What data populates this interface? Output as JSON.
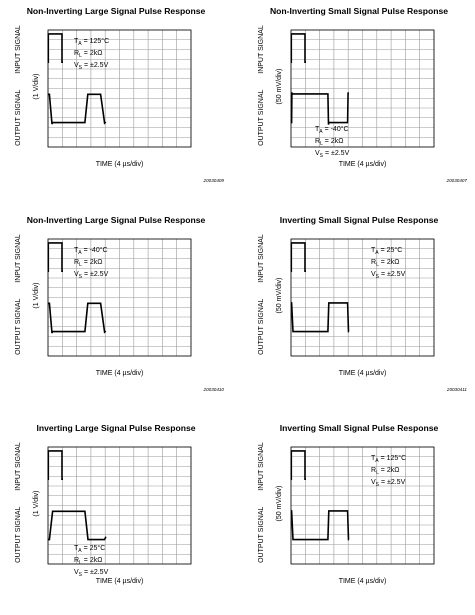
{
  "chart_data": [
    {
      "type": "line",
      "title": "Non-Inverting Large Signal Pulse Response",
      "xlabel": "TIME (4 µs/div)",
      "ylabel_top": "INPUT SIGNAL",
      "ylabel_bottom": "OUTPUT SIGNAL",
      "yscale": "(1 V/div)",
      "code": "20030409",
      "annotation": {
        "ta": "T",
        "ta_sub": "A",
        "ta_val": " = 125°C",
        "rl": "R",
        "rl_sub": "L",
        "rl_val": " = 2kΩ",
        "vs": "V",
        "vs_sub": "S",
        "vs_val": " = ±2.5V"
      },
      "annotation_pos": "top-left",
      "grid": true,
      "series": [
        {
          "name": "INPUT SIGNAL",
          "x": [
            0,
            0.02,
            0.02,
            0.98,
            0.98,
            1.05
          ],
          "y": [
            4.7,
            4.7,
            7.6,
            7.6,
            4.7,
            4.7
          ]
        },
        {
          "name": "OUTPUT SIGNAL",
          "x": [
            0,
            0.1,
            0.28,
            0.32,
            0.5,
            2.58,
            2.78,
            3.08,
            3.68,
            3.96,
            4.04
          ],
          "y": [
            1.4,
            1.4,
            -1.65,
            -1.5,
            -1.5,
            -1.5,
            1.4,
            1.4,
            1.4,
            -1.55,
            -1.45
          ]
        }
      ]
    },
    {
      "type": "line",
      "title": "Non-Inverting Small Signal Pulse Response",
      "xlabel": "TIME (4 µs/div)",
      "ylabel_top": "INPUT SIGNAL",
      "ylabel_bottom": "OUTPUT SIGNAL",
      "yscale": "(50 mV/div)",
      "code": "20030407",
      "annotation": {
        "ta": "T",
        "ta_sub": "A",
        "ta_val": " = -40°C",
        "rl": "R",
        "rl_sub": "L",
        "rl_val": " = 2kΩ",
        "vs": "V",
        "vs_sub": "S",
        "vs_val": " = ±2.5V"
      },
      "annotation_pos": "center",
      "grid": true,
      "series": [
        {
          "name": "INPUT SIGNAL",
          "x": [
            0,
            0.02,
            0.02,
            0.98,
            0.98,
            1.05
          ],
          "y": [
            4.7,
            4.7,
            7.6,
            7.6,
            4.7,
            4.7
          ]
        },
        {
          "name": "OUTPUT SIGNAL",
          "x": [
            0,
            0.04,
            0.06,
            0.08,
            0.12,
            2.58,
            2.62,
            2.64,
            2.7,
            3.96,
            3.99,
            4.01,
            4.05
          ],
          "y": [
            -1.5,
            -1.5,
            1.6,
            1.45,
            1.45,
            1.45,
            -1.7,
            -1.5,
            -1.5,
            -1.5,
            1.6,
            1.45,
            1.45
          ]
        }
      ]
    },
    {
      "type": "line",
      "title": "Non-Inverting Large Signal Pulse Response",
      "xlabel": "TIME (4 µs/div)",
      "ylabel_top": "INPUT SIGNAL",
      "ylabel_bottom": "OUTPUT SIGNAL",
      "yscale": "(1 V/div)",
      "code": "20030410",
      "annotation": {
        "ta": "T",
        "ta_sub": "A",
        "ta_val": " = -40°C",
        "rl": "R",
        "rl_sub": "L",
        "rl_val": " = 2kΩ",
        "vs": "V",
        "vs_sub": "S",
        "vs_val": " = ±2.5V"
      },
      "annotation_pos": "top-left",
      "grid": true,
      "series": [
        {
          "name": "INPUT SIGNAL",
          "x": [
            0,
            0.02,
            0.02,
            0.98,
            0.98,
            1.05
          ],
          "y": [
            4.7,
            4.7,
            7.6,
            7.6,
            4.7,
            4.7
          ]
        },
        {
          "name": "OUTPUT SIGNAL",
          "x": [
            0,
            0.1,
            0.28,
            0.32,
            0.5,
            2.58,
            2.78,
            3.08,
            3.68,
            3.96,
            4.04
          ],
          "y": [
            1.4,
            1.4,
            -1.65,
            -1.5,
            -1.5,
            -1.5,
            1.4,
            1.4,
            1.4,
            -1.55,
            -1.45
          ]
        }
      ]
    },
    {
      "type": "line",
      "title": "Inverting Small Signal Pulse Response",
      "xlabel": "TIME (4 µs/div)",
      "ylabel_top": "INPUT SIGNAL",
      "ylabel_bottom": "OUTPUT SIGNAL",
      "yscale": "(50 mV/div)",
      "code": "20030411",
      "annotation": {
        "ta": "T",
        "ta_sub": "A",
        "ta_val": " = 25°C",
        "rl": "R",
        "rl_sub": "L",
        "rl_val": " = 2kΩ",
        "vs": "V",
        "vs_sub": "S",
        "vs_val": " = ±2.5V"
      },
      "annotation_pos": "top-right",
      "grid": true,
      "series": [
        {
          "name": "INPUT SIGNAL",
          "x": [
            0,
            0.02,
            0.02,
            0.98,
            0.98,
            1.05
          ],
          "y": [
            4.7,
            4.7,
            7.6,
            7.6,
            4.7,
            4.7
          ]
        },
        {
          "name": "OUTPUT SIGNAL",
          "x": [
            0,
            0.04,
            0.14,
            2.58,
            2.64,
            3.96,
            4.02,
            4.05
          ],
          "y": [
            1.45,
            1.45,
            -1.5,
            -1.5,
            1.45,
            1.45,
            -1.5,
            -1.5
          ]
        }
      ]
    },
    {
      "type": "line",
      "title": "Inverting Large Signal Pulse Response",
      "xlabel": "TIME (4 µs/div)",
      "ylabel_top": "INPUT SIGNAL",
      "ylabel_bottom": "OUTPUT SIGNAL",
      "yscale": "(1 V/div)",
      "code": "",
      "annotation": {
        "ta": "T",
        "ta_sub": "A",
        "ta_val": " = 25°C",
        "rl": "R",
        "rl_sub": "L",
        "rl_val": " = 2kΩ",
        "vs": "V",
        "vs_sub": "S",
        "vs_val": " = ±2.5V"
      },
      "annotation_pos": "bottom-left",
      "grid": true,
      "series": [
        {
          "name": "INPUT SIGNAL",
          "x": [
            0,
            0.02,
            0.02,
            0.98,
            0.98,
            1.05
          ],
          "y": [
            4.7,
            4.7,
            7.6,
            7.6,
            4.7,
            4.7
          ]
        },
        {
          "name": "OUTPUT SIGNAL",
          "x": [
            0,
            0.1,
            0.32,
            2.58,
            2.8,
            3.96,
            4.05
          ],
          "y": [
            -1.5,
            -1.5,
            1.4,
            1.4,
            -1.5,
            -1.5,
            -1.2
          ]
        }
      ]
    },
    {
      "type": "line",
      "title": "Inverting Small Signal Pulse Response",
      "xlabel": "TIME (4 µs/div)",
      "ylabel_top": "INPUT SIGNAL",
      "ylabel_bottom": "OUTPUT SIGNAL",
      "yscale": "(50 mV/div)",
      "code": "",
      "annotation": {
        "ta": "T",
        "ta_sub": "A",
        "ta_val": " = 125°C",
        "rl": "R",
        "rl_sub": "L",
        "rl_val": " = 2kΩ",
        "vs": "V",
        "vs_sub": "S",
        "vs_val": " = ±2.5V"
      },
      "annotation_pos": "top-right",
      "grid": true,
      "series": [
        {
          "name": "INPUT SIGNAL",
          "x": [
            0,
            0.02,
            0.02,
            0.98,
            0.98,
            1.05
          ],
          "y": [
            4.7,
            4.7,
            7.6,
            7.6,
            4.7,
            4.7
          ]
        },
        {
          "name": "OUTPUT SIGNAL",
          "x": [
            0,
            0.04,
            0.14,
            2.58,
            2.64,
            3.96,
            4.02,
            4.05
          ],
          "y": [
            1.45,
            1.45,
            -1.5,
            -1.5,
            1.45,
            1.45,
            -1.5,
            -1.5
          ]
        }
      ]
    }
  ]
}
